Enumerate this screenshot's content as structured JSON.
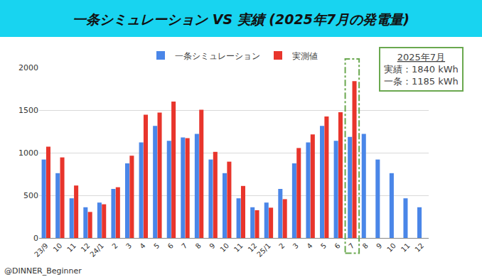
{
  "chart_data": {
    "type": "bar",
    "title": "一条シミュレーション VS 実績 (2025年7月の発電量)",
    "categories": [
      "23/9",
      "10",
      "11",
      "12",
      "24/1",
      "2",
      "3",
      "4",
      "5",
      "6",
      "7",
      "8",
      "9",
      "10",
      "11",
      "12",
      "25/1",
      "2",
      "3",
      "4",
      "5",
      "6",
      "7",
      "8",
      "9",
      "10",
      "11",
      "12"
    ],
    "series": [
      {
        "name": "一条シミュレーション",
        "color": "#4a86e8",
        "values": [
          920,
          760,
          465,
          360,
          415,
          575,
          875,
          1120,
          1315,
          1140,
          1180,
          1220,
          920,
          760,
          465,
          360,
          415,
          575,
          875,
          1120,
          1315,
          1140,
          1185,
          1220,
          920,
          760,
          465,
          360
        ]
      },
      {
        "name": "実測値",
        "color": "#e8352c",
        "values": [
          1070,
          945,
          615,
          305,
          395,
          595,
          965,
          1445,
          1470,
          1600,
          1170,
          1505,
          1010,
          895,
          610,
          325,
          355,
          455,
          1055,
          1215,
          1425,
          1475,
          1840,
          null,
          null,
          null,
          null,
          null
        ]
      }
    ],
    "ylim": [
      0,
      2000
    ],
    "yticks": [
      0,
      500,
      1000,
      1500,
      2000
    ],
    "grid": true,
    "legend": "top",
    "box": [
      "2025年7月",
      "実績：1840 kWh",
      "一条：1185 kWh"
    ],
    "source": "@DINNER_Beginner"
  }
}
